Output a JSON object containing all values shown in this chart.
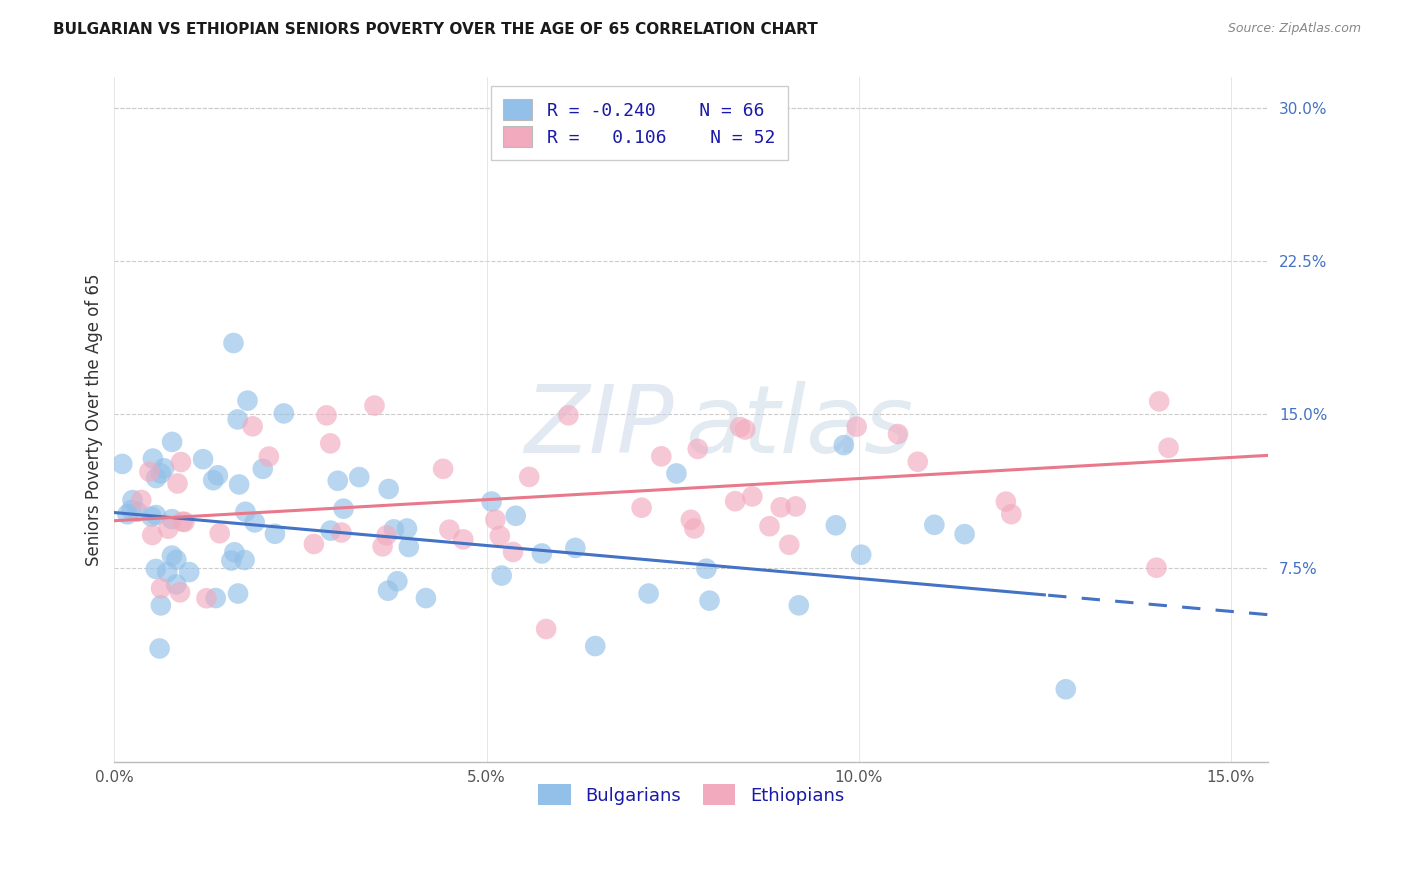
{
  "title": "BULGARIAN VS ETHIOPIAN SENIORS POVERTY OVER THE AGE OF 65 CORRELATION CHART",
  "source": "Source: ZipAtlas.com",
  "ylabel": "Seniors Poverty Over the Age of 65",
  "xlim": [
    0.0,
    0.155
  ],
  "ylim": [
    -0.02,
    0.315
  ],
  "x_ticks": [
    0.0,
    0.05,
    0.1,
    0.15
  ],
  "x_tick_labels": [
    "0.0%",
    "5.0%",
    "10.0%",
    "15.0%"
  ],
  "y_ticks_right": [
    0.075,
    0.15,
    0.225,
    0.3
  ],
  "y_tick_labels_right": [
    "7.5%",
    "15.0%",
    "22.5%",
    "30.0%"
  ],
  "legend_r_blue": "-0.240",
  "legend_n_blue": "66",
  "legend_r_pink": "0.106",
  "legend_n_pink": "52",
  "legend_label_blue": "Bulgarians",
  "legend_label_pink": "Ethiopians",
  "blue_color": "#92C0E8",
  "pink_color": "#F2AABE",
  "blue_line_color": "#4472C4",
  "pink_line_color": "#E8788A",
  "watermark_zip": "ZIP",
  "watermark_atlas": "atlas",
  "title_fontsize": 11,
  "source_fontsize": 9,
  "axis_label_fontsize": 12,
  "tick_fontsize": 11,
  "legend_fontsize": 13,
  "blue_trend_start_y": 0.102,
  "blue_trend_end_y": 0.052,
  "pink_trend_start_y": 0.098,
  "pink_trend_end_y": 0.13
}
